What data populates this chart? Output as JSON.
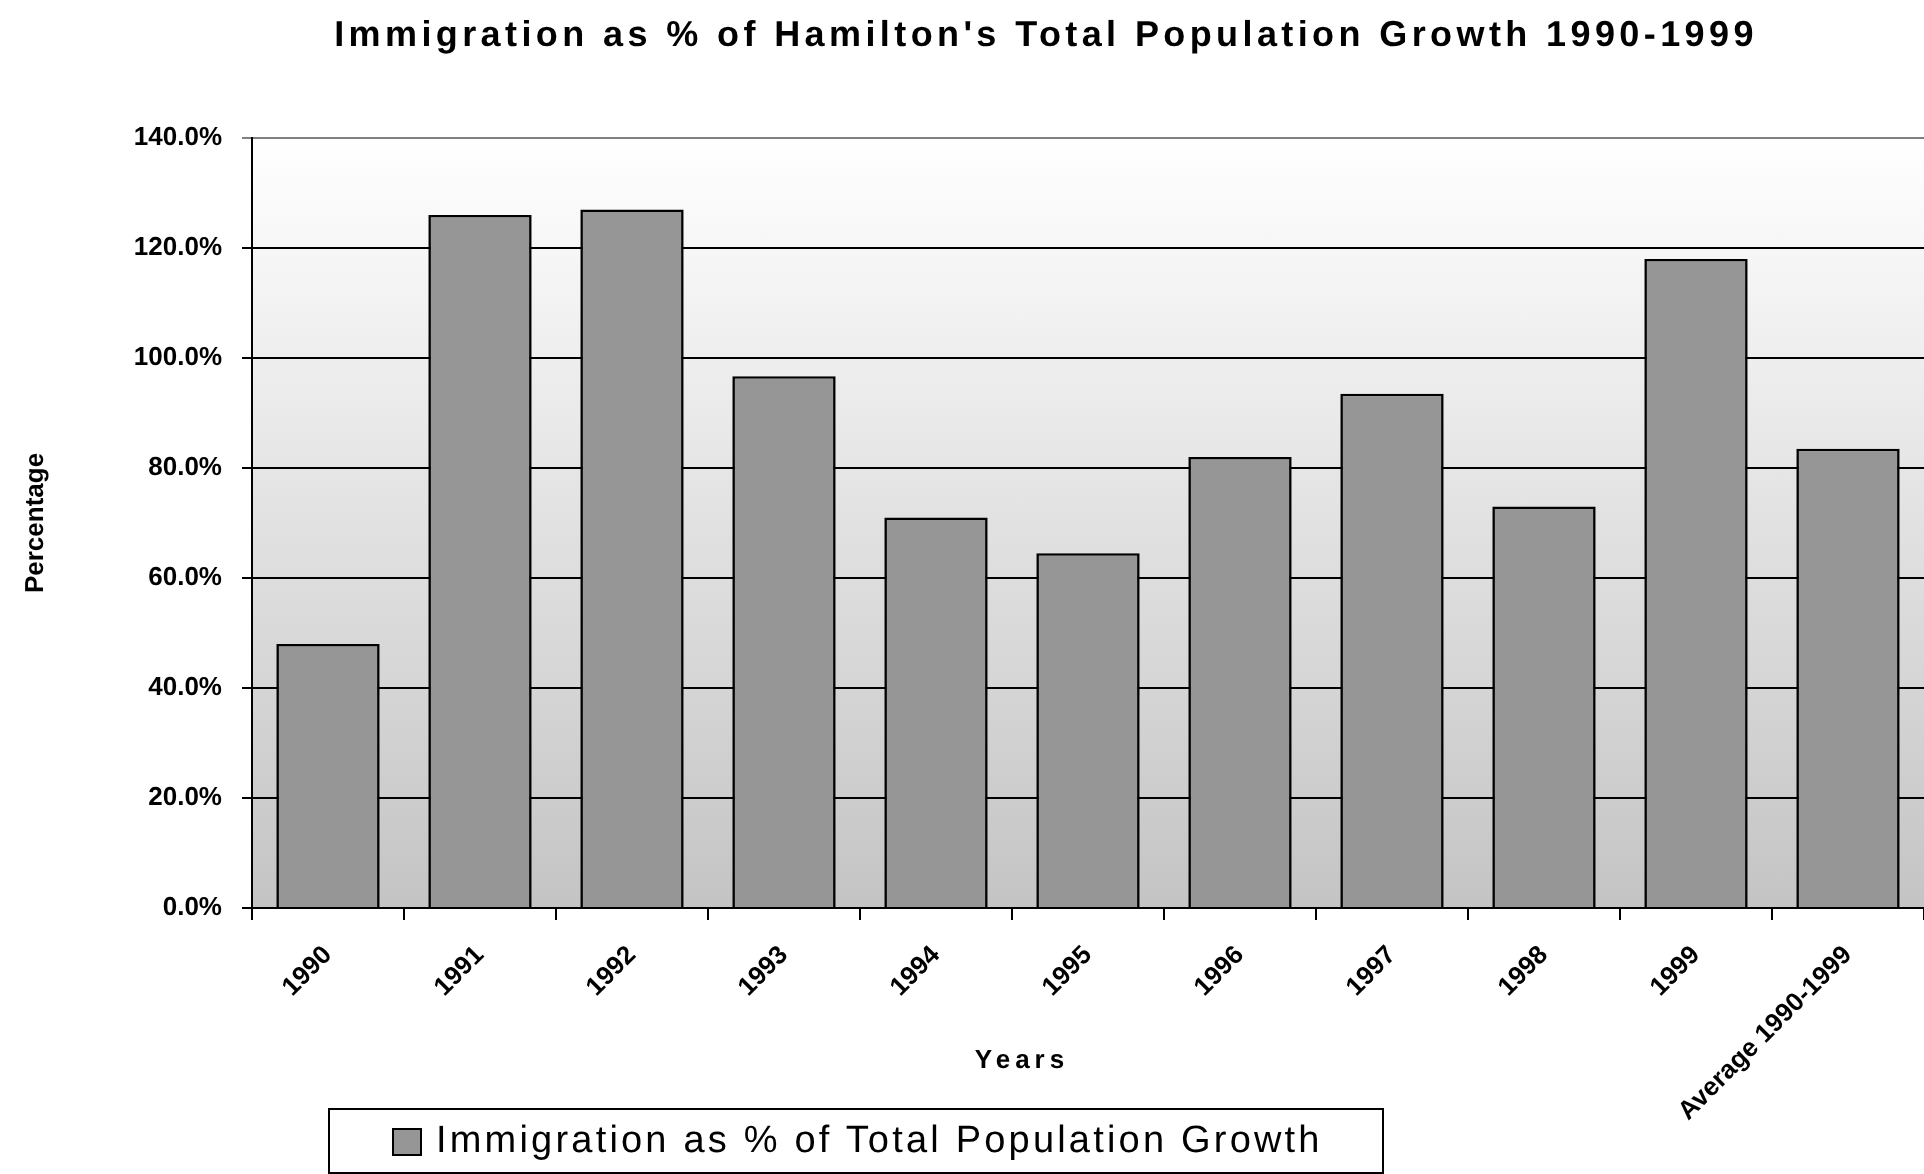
{
  "chart_data": {
    "type": "bar",
    "title": "Immigration as % of Hamilton's Total Population Growth 1990-1999",
    "xlabel": "Years",
    "ylabel": "Percentage",
    "categories": [
      "1990",
      "1991",
      "1992",
      "1993",
      "1994",
      "1995",
      "1996",
      "1997",
      "1998",
      "1999",
      "Average 1990-1999"
    ],
    "series": [
      {
        "name": "Immigration as % of Total Population Growth",
        "color": "#969696",
        "values": [
          48,
          126,
          127,
          96.7,
          71,
          64.5,
          82,
          93.5,
          73,
          118,
          83.5
        ]
      }
    ],
    "ylim": [
      0,
      140
    ],
    "yticks": [
      {
        "value": 0,
        "label": "0.0%"
      },
      {
        "value": 20,
        "label": "20.0%"
      },
      {
        "value": 40,
        "label": "40.0%"
      },
      {
        "value": 60,
        "label": "60.0%"
      },
      {
        "value": 80,
        "label": "80.0%"
      },
      {
        "value": 100,
        "label": "100.0%"
      },
      {
        "value": 120,
        "label": "120.0%"
      },
      {
        "value": 140,
        "label": "140.0%"
      }
    ],
    "grid": "y",
    "legend": "bottom"
  }
}
